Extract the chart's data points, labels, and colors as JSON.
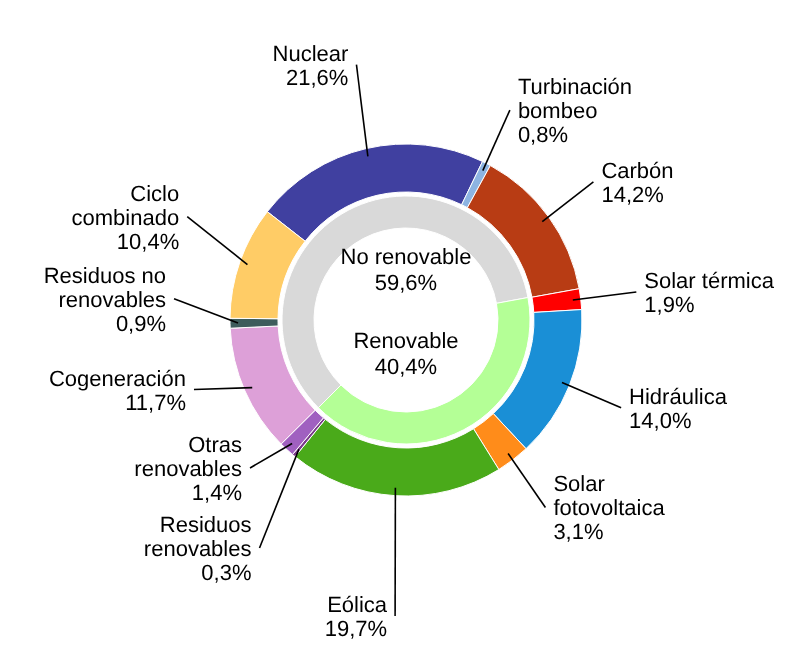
{
  "chart_data": [
    {
      "type": "donut",
      "categories": [
        "Nuclear",
        "Turbinación bombeo",
        "Carbón",
        "Solar térmica",
        "Hidráulica",
        "Solar fotovoltaica",
        "Eólica",
        "Residuos renovables",
        "Otras renovables",
        "Cogeneración",
        "Residuos no renovables",
        "Ciclo combinado"
      ],
      "values": [
        21.6,
        0.8,
        14.2,
        1.9,
        14.0,
        3.1,
        19.7,
        0.3,
        1.4,
        11.7,
        0.9,
        10.4
      ],
      "value_labels": [
        "21,6%",
        "0,8%",
        "14,2%",
        "1,9%",
        "14,0%",
        "3,1%",
        "19,7%",
        "0,3%",
        "1,4%",
        "11,7%",
        "0,9%",
        "10,4%"
      ],
      "colors": [
        "#4040a0",
        "#8db4e2",
        "#b83c14",
        "#ff0000",
        "#1a8fd6",
        "#ff8c1a",
        "#4aaa1a",
        "#7a3a8a",
        "#a060c0",
        "#dda0d8",
        "#3d5c5c",
        "#ffcc66"
      ]
    },
    {
      "type": "donut",
      "categories": [
        "No renovable",
        "Renovable"
      ],
      "values": [
        59.6,
        40.4
      ],
      "value_labels": [
        "59,6%",
        "40,4%"
      ],
      "colors": [
        "#d9d9d9",
        "#b4ff96"
      ]
    }
  ]
}
